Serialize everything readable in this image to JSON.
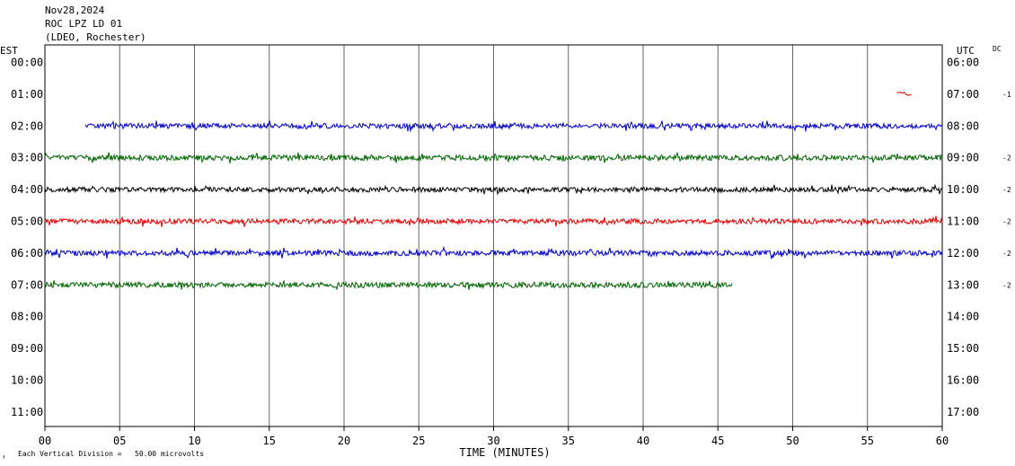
{
  "header": {
    "date": "Nov28,2024",
    "station": "ROC LPZ LD 01",
    "network": "(LDEO, Rochester)"
  },
  "scale_note": "Each Vertical Division =   50.00 microvolts",
  "corner_mark": "↑",
  "colors": {
    "blue": "#0000c8",
    "green": "#006400",
    "black": "#000000",
    "red": "#e00000",
    "grid": "#000000"
  },
  "chart_data": {
    "type": "line",
    "title": "",
    "xlabel": "TIME (MINUTES)",
    "xlim": [
      0,
      60
    ],
    "x_ticks": [
      "00",
      "05",
      "10",
      "15",
      "20",
      "25",
      "30",
      "35",
      "40",
      "45",
      "50",
      "55",
      "60"
    ],
    "left_axis_title": "EST",
    "right_axis_title": "UTC",
    "dc_header": "DC",
    "rows": [
      {
        "est": "00:00",
        "utc": "06:00",
        "dc": "",
        "trace": null
      },
      {
        "est": "01:00",
        "utc": "07:00",
        "dc": "-1",
        "trace": {
          "color": "red",
          "start": 57.0,
          "end": 58.0,
          "amp": 0.15,
          "seed": 11
        }
      },
      {
        "est": "02:00",
        "utc": "08:00",
        "dc": "",
        "trace": {
          "color": "blue",
          "start": 2.7,
          "end": 60.0,
          "amp": 0.16,
          "seed": 23
        }
      },
      {
        "est": "03:00",
        "utc": "09:00",
        "dc": "-2",
        "trace": {
          "color": "green",
          "start": 0.0,
          "end": 60.0,
          "amp": 0.17,
          "seed": 37
        }
      },
      {
        "est": "04:00",
        "utc": "10:00",
        "dc": "-2",
        "trace": {
          "color": "black",
          "start": 0.0,
          "end": 60.0,
          "amp": 0.15,
          "seed": 41
        }
      },
      {
        "est": "05:00",
        "utc": "11:00",
        "dc": "-2",
        "trace": {
          "color": "red",
          "start": 0.0,
          "end": 60.0,
          "amp": 0.16,
          "seed": 53
        }
      },
      {
        "est": "06:00",
        "utc": "12:00",
        "dc": "-2",
        "trace": {
          "color": "blue",
          "start": 0.0,
          "end": 60.0,
          "amp": 0.16,
          "seed": 67
        }
      },
      {
        "est": "07:00",
        "utc": "13:00",
        "dc": "-2",
        "trace": {
          "color": "green",
          "start": 0.0,
          "end": 46.0,
          "amp": 0.17,
          "seed": 79
        }
      },
      {
        "est": "08:00",
        "utc": "14:00",
        "dc": "",
        "trace": null
      },
      {
        "est": "09:00",
        "utc": "15:00",
        "dc": "",
        "trace": null
      },
      {
        "est": "10:00",
        "utc": "16:00",
        "dc": "",
        "trace": null
      },
      {
        "est": "11:00",
        "utc": "17:00",
        "dc": "",
        "trace": null
      }
    ]
  }
}
